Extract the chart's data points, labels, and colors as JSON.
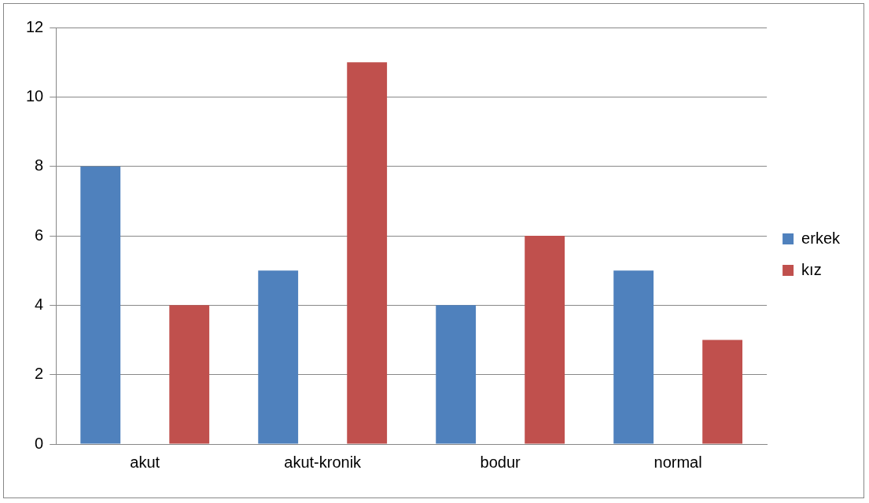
{
  "chart_data": {
    "type": "bar",
    "categories": [
      "akut",
      "akut-kronik",
      "bodur",
      "normal"
    ],
    "series": [
      {
        "name": "erkek",
        "color": "#4f81bd",
        "values": [
          8,
          5,
          4,
          5
        ]
      },
      {
        "name": "kız",
        "color": "#c0504d",
        "values": [
          4,
          11,
          6,
          3
        ]
      }
    ],
    "ylim": [
      0,
      12
    ],
    "yticks": [
      0,
      2,
      4,
      6,
      8,
      10,
      12
    ],
    "grid": "y",
    "legend": "right"
  }
}
